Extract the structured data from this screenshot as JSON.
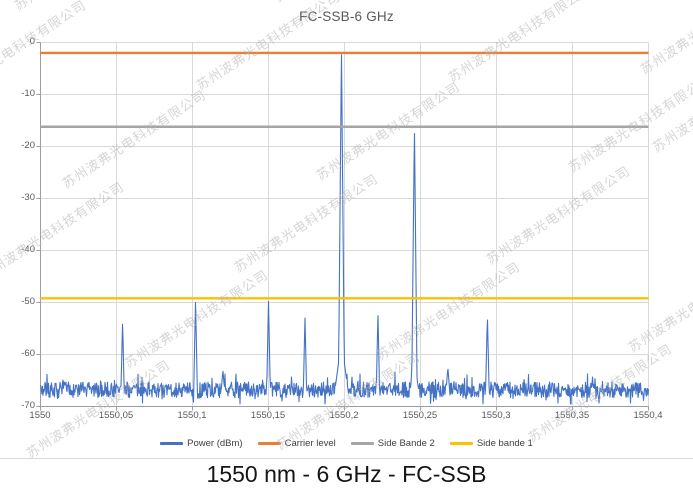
{
  "caption": "1550 nm - 6 GHz - FC-SSB",
  "watermark": {
    "text": "苏州波弗光电科技有限公司"
  },
  "chart_data": {
    "type": "line",
    "title": "FC-SSB-6 GHz",
    "xlabel": "",
    "ylabel": "",
    "xlim": [
      1550,
      1550.4
    ],
    "ylim": [
      -70,
      0
    ],
    "x_ticks": [
      "1550",
      "1550,05",
      "1550,1",
      "1550,15",
      "1550,2",
      "1550,25",
      "1550,3",
      "1550,35",
      "1550,4"
    ],
    "y_ticks": [
      "0",
      "-10",
      "-20",
      "-30",
      "-40",
      "-50",
      "-60",
      "-70"
    ],
    "grid": true,
    "legend_position": "bottom",
    "series": [
      {
        "name": "Power (dBm)",
        "color": "#4472C4",
        "kind": "spectrum-trace",
        "noise_floor_dbm": -66.8,
        "noise_range_dbm": [
          -69.5,
          -62.8
        ],
        "peaks": [
          {
            "wl": 1550.054,
            "power": -53.5,
            "hw": 0.0013
          },
          {
            "wl": 1550.102,
            "power": -49.6,
            "hw": 0.0014
          },
          {
            "wl": 1550.12,
            "power": -63.0,
            "hw": 0.002
          },
          {
            "wl": 1550.15,
            "power": -49.8,
            "hw": 0.0014
          },
          {
            "wl": 1550.174,
            "power": -52.8,
            "hw": 0.0013
          },
          {
            "wl": 1550.198,
            "power": -1.5,
            "hw": 0.0021,
            "pedestal": {
              "level": -57.5,
              "hw": 0.0058
            }
          },
          {
            "wl": 1550.222,
            "power": -52.0,
            "hw": 0.0013
          },
          {
            "wl": 1550.246,
            "power": -16.0,
            "hw": 0.0019,
            "pedestal": {
              "level": -61.5,
              "hw": 0.0045
            }
          },
          {
            "wl": 1550.268,
            "power": -62.5,
            "hw": 0.002
          },
          {
            "wl": 1550.294,
            "power": -52.4,
            "hw": 0.0014
          }
        ]
      },
      {
        "name": "Carrier level",
        "color": "#ED7D31",
        "kind": "hline",
        "value": -2.0
      },
      {
        "name": "Side Bande 2",
        "color": "#A5A5A5",
        "kind": "hline",
        "value": -16.2
      },
      {
        "name": "Side bande 1",
        "color": "#FFC000",
        "kind": "hline",
        "value": -49.2
      }
    ],
    "colors": {
      "grid": "#d9d9d9",
      "axis": "#9e9e9e",
      "tick_label": "#595959",
      "title": "#595959",
      "caption": "#151515",
      "watermark": "#b3b3b3"
    }
  }
}
